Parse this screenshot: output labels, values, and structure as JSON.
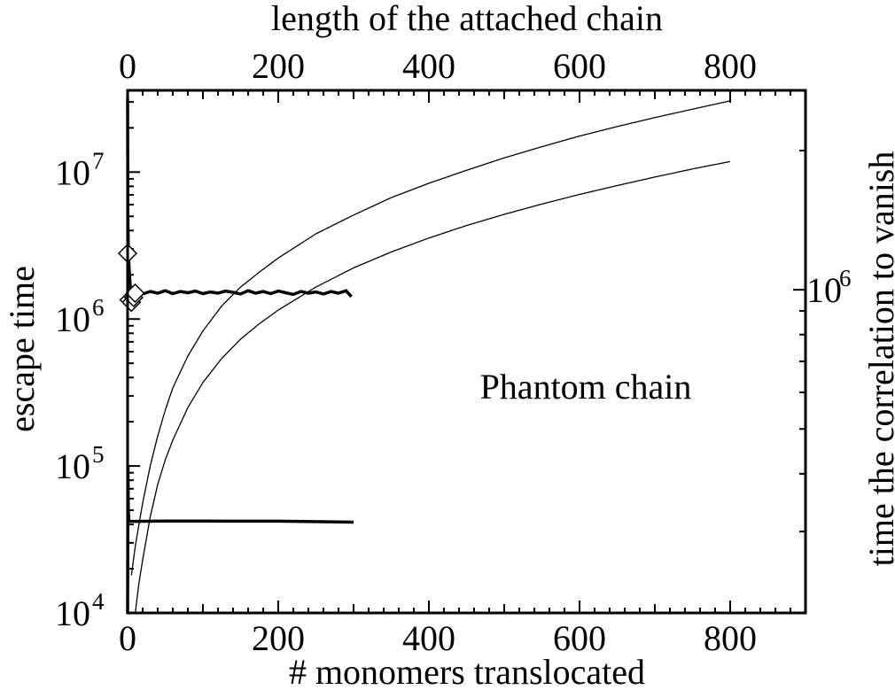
{
  "chart_data": {
    "type": "line",
    "title": "",
    "annotation": "Phantom chain",
    "x_bottom": {
      "label": "# monomers translocated",
      "range": [
        0,
        900
      ],
      "ticks": [
        0,
        200,
        400,
        600,
        800
      ],
      "tick_labels": [
        "0",
        "200",
        "400",
        "600",
        "800"
      ]
    },
    "x_top": {
      "label": "length of the attached chain",
      "range": [
        0,
        900
      ],
      "ticks": [
        0,
        200,
        400,
        600,
        800
      ],
      "tick_labels": [
        "0",
        "200",
        "400",
        "600",
        "800"
      ]
    },
    "y_left": {
      "label": "escape time",
      "scale": "log",
      "range": [
        10000,
        36000000
      ],
      "ticks": [
        {
          "value": 10000,
          "base": "10",
          "exp": "4"
        },
        {
          "value": 100000,
          "base": "10",
          "exp": "5"
        },
        {
          "value": 1000000,
          "base": "10",
          "exp": "6"
        },
        {
          "value": 10000000,
          "base": "10",
          "exp": "7"
        }
      ]
    },
    "y_right": {
      "label": "time the correlation to vanish",
      "scale": "log",
      "range": [
        200000,
        2700000
      ],
      "ticks": [
        {
          "value": 1000000,
          "base": "10",
          "exp": "6"
        }
      ]
    },
    "series": [
      {
        "style": "thick",
        "axis": "left",
        "x": [
          0,
          0.3,
          1,
          2,
          3,
          5,
          8,
          12,
          20,
          30,
          40,
          50,
          60,
          70,
          80,
          90,
          100,
          110,
          120,
          130,
          140,
          150,
          160,
          170,
          180,
          190,
          200,
          210,
          220,
          230,
          240,
          250,
          260,
          270,
          280,
          290,
          297
        ],
        "y": [
          32000000,
          5000000,
          3000000,
          2200000,
          1800000,
          1400000,
          1460000,
          1520000,
          1480000,
          1540000,
          1500000,
          1560000,
          1490000,
          1540000,
          1510000,
          1550000,
          1490000,
          1530000,
          1500000,
          1550000,
          1520000,
          1480000,
          1560000,
          1500000,
          1540000,
          1490000,
          1550000,
          1510000,
          1470000,
          1540000,
          1500000,
          1530000,
          1480000,
          1540000,
          1500000,
          1560000,
          1420000
        ]
      },
      {
        "style": "thick",
        "axis": "left",
        "x": [
          0,
          0.5,
          1,
          1.5,
          2,
          3,
          5,
          10,
          50,
          100,
          200,
          300
        ],
        "y": [
          10000,
          100000,
          50000,
          43000,
          42000,
          42000,
          42000,
          42000,
          42200,
          42200,
          42100,
          41500
        ]
      },
      {
        "style": "thin",
        "axis": "left",
        "x": [
          5,
          10,
          15,
          20,
          30,
          40,
          50,
          60,
          80,
          100,
          125,
          150,
          175,
          200,
          250,
          300,
          350,
          400,
          450,
          500,
          550,
          600,
          650,
          700,
          750,
          800
        ],
        "y": [
          18000,
          28000,
          40000,
          56000,
          100000,
          160000,
          240000,
          340000,
          560000,
          830000,
          1230000,
          1650000,
          2090000,
          2600000,
          3800000,
          5100000,
          6700000,
          8400000,
          10300000,
          12500000,
          14900000,
          17600000,
          20400000,
          23500000,
          26800000,
          30500000
        ]
      },
      {
        "style": "thin",
        "axis": "left",
        "x": [
          10,
          15,
          20,
          30,
          40,
          50,
          60,
          80,
          100,
          125,
          150,
          175,
          200,
          250,
          300,
          350,
          400,
          450,
          500,
          550,
          600,
          650,
          700,
          750,
          800
        ],
        "y": [
          9800,
          16000,
          23000,
          45000,
          75000,
          110000,
          150000,
          250000,
          370000,
          540000,
          730000,
          930000,
          1150000,
          1650000,
          2230000,
          2860000,
          3560000,
          4330000,
          5160000,
          6060000,
          7050000,
          8100000,
          9250000,
          10500000,
          11800000
        ]
      }
    ],
    "markers": {
      "shape": "diamond",
      "axis": "left",
      "x": [
        0,
        2,
        5,
        8,
        10
      ],
      "y": [
        2800000,
        1350000,
        1300000,
        1400000,
        1500000
      ]
    }
  }
}
